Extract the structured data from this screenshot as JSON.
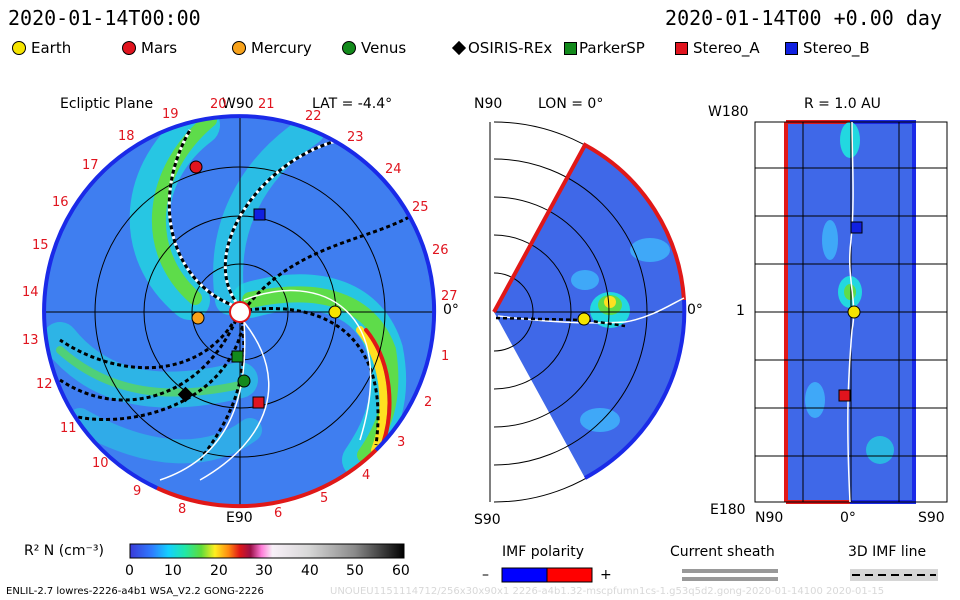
{
  "header": {
    "left_time": "2020-01-14T00:00",
    "right_time": "2020-01-14T00 +0.00 day"
  },
  "legend": [
    {
      "label": "Earth",
      "color": "#f5e400",
      "shape": "circle"
    },
    {
      "label": "Mars",
      "color": "#e0141e",
      "shape": "circle"
    },
    {
      "label": "Mercury",
      "color": "#f7a21b",
      "shape": "circle"
    },
    {
      "label": "Venus",
      "color": "#138a1c",
      "shape": "circle"
    },
    {
      "label": "OSIRIS-REx",
      "color": "#000000",
      "shape": "diamond"
    },
    {
      "label": "ParkerSP",
      "color": "#138a1c",
      "shape": "square"
    },
    {
      "label": "Stereo_A",
      "color": "#e0141e",
      "shape": "square"
    },
    {
      "label": "Stereo_B",
      "color": "#1020e0",
      "shape": "square"
    }
  ],
  "panels": {
    "ecliptic": {
      "title": "Ecliptic Plane",
      "top_label": "W90",
      "lat": "LAT = -4.4°",
      "bottom_label": "E90",
      "right_label": "0°",
      "sectors": [
        "20",
        "21",
        "22",
        "23",
        "24",
        "25",
        "26",
        "27",
        "1",
        "2",
        "3",
        "4",
        "5",
        "6",
        "8",
        "9",
        "10",
        "11",
        "12",
        "13",
        "14",
        "15",
        "16",
        "17",
        "18",
        "19"
      ]
    },
    "meridional": {
      "top_label": "N90",
      "lon": "LON = 0°",
      "bottom_label": "S90",
      "right_label": "0°"
    },
    "radial": {
      "title": "R = 1.0 AU",
      "top_label": "W180",
      "mid_label": "1",
      "bottom_left": "E180",
      "x_labels": [
        "N90",
        "0°",
        "S90"
      ]
    }
  },
  "colorbar": {
    "label": "R² N (cm⁻³)",
    "ticks": [
      "0",
      "10",
      "20",
      "30",
      "40",
      "50",
      "60"
    ]
  },
  "imf": {
    "title": "IMF polarity",
    "minus": "–",
    "plus": "+",
    "colors": {
      "negative": "#0000ff",
      "positive": "#ff0000"
    }
  },
  "current_sheath": {
    "title": "Current sheath"
  },
  "imf_line": {
    "title": "3D IMF line"
  },
  "footer": {
    "left": "ENLIL-2.7 lowres-2226-a4b1 WSA_V2.2 GONG-2226",
    "right": "UNOUEU1151114712/256x30x90x1 2226-a4b1.32-mscpfumn1cs-1.g53q5d2.gong-2020-01-14100    2020-01-15"
  }
}
